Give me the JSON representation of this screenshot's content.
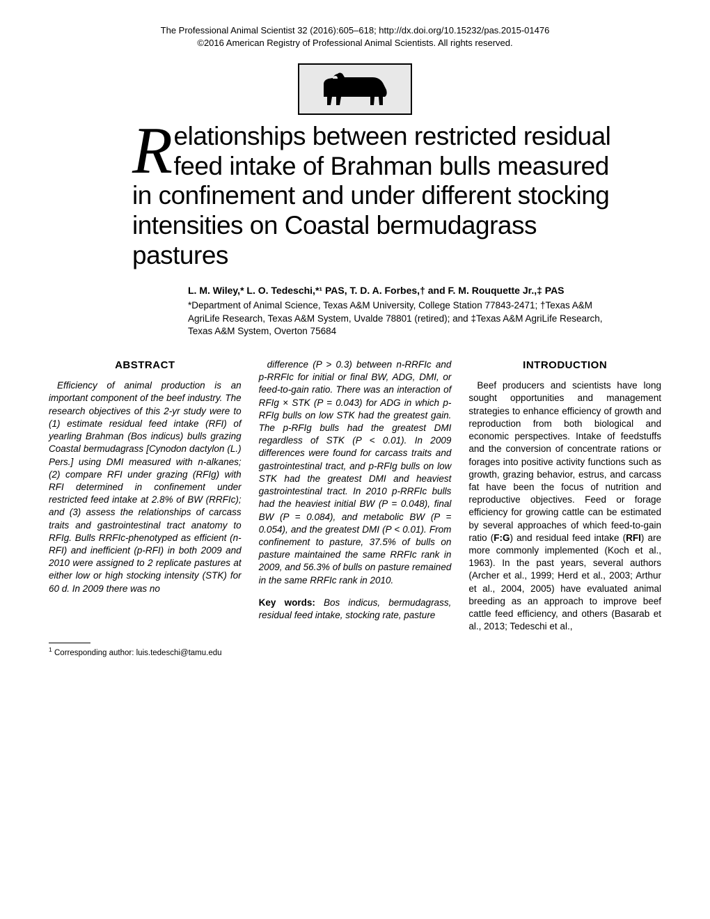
{
  "header": {
    "citation": "The Professional Animal Scientist 32 (2016):605–618; http://dx.doi.org/10.15232/pas.2015-01476",
    "copyright": "©2016 American Registry of Professional Animal Scientists. All rights reserved."
  },
  "title": {
    "dropcap": "R",
    "rest": "elationships between restricted residual feed intake of Brahman bulls measured in confinement and under different stocking intensities on Coastal bermudagrass pastures"
  },
  "authors": "L. M. Wiley,* L. O. Tedeschi,*¹ PAS, T. D. A. Forbes,† and F. M. Rouquette Jr.,‡ PAS",
  "affiliations": "*Department of Animal Science, Texas A&M University, College Station 77843-2471; †Texas A&M AgriLife Research, Texas A&M System, Uvalde 78801 (retired); and ‡Texas A&M AgriLife Research, Texas A&M System, Overton 75684",
  "abstract": {
    "heading": "ABSTRACT",
    "col1": "Efficiency of animal production is an important component of the beef industry. The research objectives of this 2-yr study were to (1) estimate residual feed intake (RFI) of yearling Brahman (Bos indicus) bulls grazing Coastal bermudagrass [Cynodon dactylon (L.) Pers.] using DMI measured with n-alkanes; (2) compare RFI under grazing (RFIg) with RFI determined in confinement under restricted feed intake at 2.8% of BW (RRFIc); and (3) assess the relationships of carcass traits and gastrointestinal tract anatomy to RFIg. Bulls RRFIc-phenotyped as efficient (n-RFI) and inefficient (p-RFI) in both 2009 and 2010 were assigned to 2 replicate pastures at either low or high stocking intensity (STK) for 60 d. In 2009 there was no",
    "col2": "difference (P > 0.3) between n-RRFIc and p-RRFIc for initial or final BW, ADG, DMI, or feed-to-gain ratio. There was an interaction of RFIg × STK (P = 0.043) for ADG in which p-RFIg bulls on low STK had the greatest gain. The p-RFIg bulls had the greatest DMI regardless of STK (P < 0.01). In 2009 differences were found for carcass traits and gastrointestinal tract, and p-RFIg bulls on low STK had the greatest DMI and heaviest gastrointestinal tract. In 2010 p-RRFIc bulls had the heaviest initial BW (P = 0.048), final BW (P = 0.084), and metabolic BW (P = 0.054), and the greatest DMI (P < 0.01). From confinement to pasture, 37.5% of bulls on pasture maintained the same RRFIc rank in 2009, and 56.3% of bulls on pasture remained in the same RRFIc rank in 2010."
  },
  "keywords": {
    "label": "Key words:",
    "text": " Bos indicus, bermudagrass, residual feed intake, stocking rate, pasture"
  },
  "introduction": {
    "heading": "INTRODUCTION",
    "text": "Beef producers and scientists have long sought opportunities and management strategies to enhance efficiency of growth and reproduction from both biological and economic perspectives. Intake of feedstuffs and the conversion of concentrate rations or forages into positive activity functions such as growth, grazing behavior, estrus, and carcass fat have been the focus of nutrition and reproductive objectives. Feed or forage efficiency for growing cattle can be estimated by several approaches of which feed-to-gain ratio (F:G) and residual feed intake (RFI) are more commonly implemented (Koch et al., 1963). In the past years, several authors (Archer et al., 1999; Herd et al., 2003; Arthur et al., 2004, 2005) have evaluated animal breeding as an approach to improve beef cattle feed efficiency, and others (Basarab et al., 2013; Tedeschi et al.,"
  },
  "footnote": {
    "marker": "1",
    "text": " Corresponding author: luis.tedeschi@tamu.edu"
  },
  "colors": {
    "text": "#000000",
    "background": "#ffffff",
    "logo_bg": "#e8e8e8"
  }
}
